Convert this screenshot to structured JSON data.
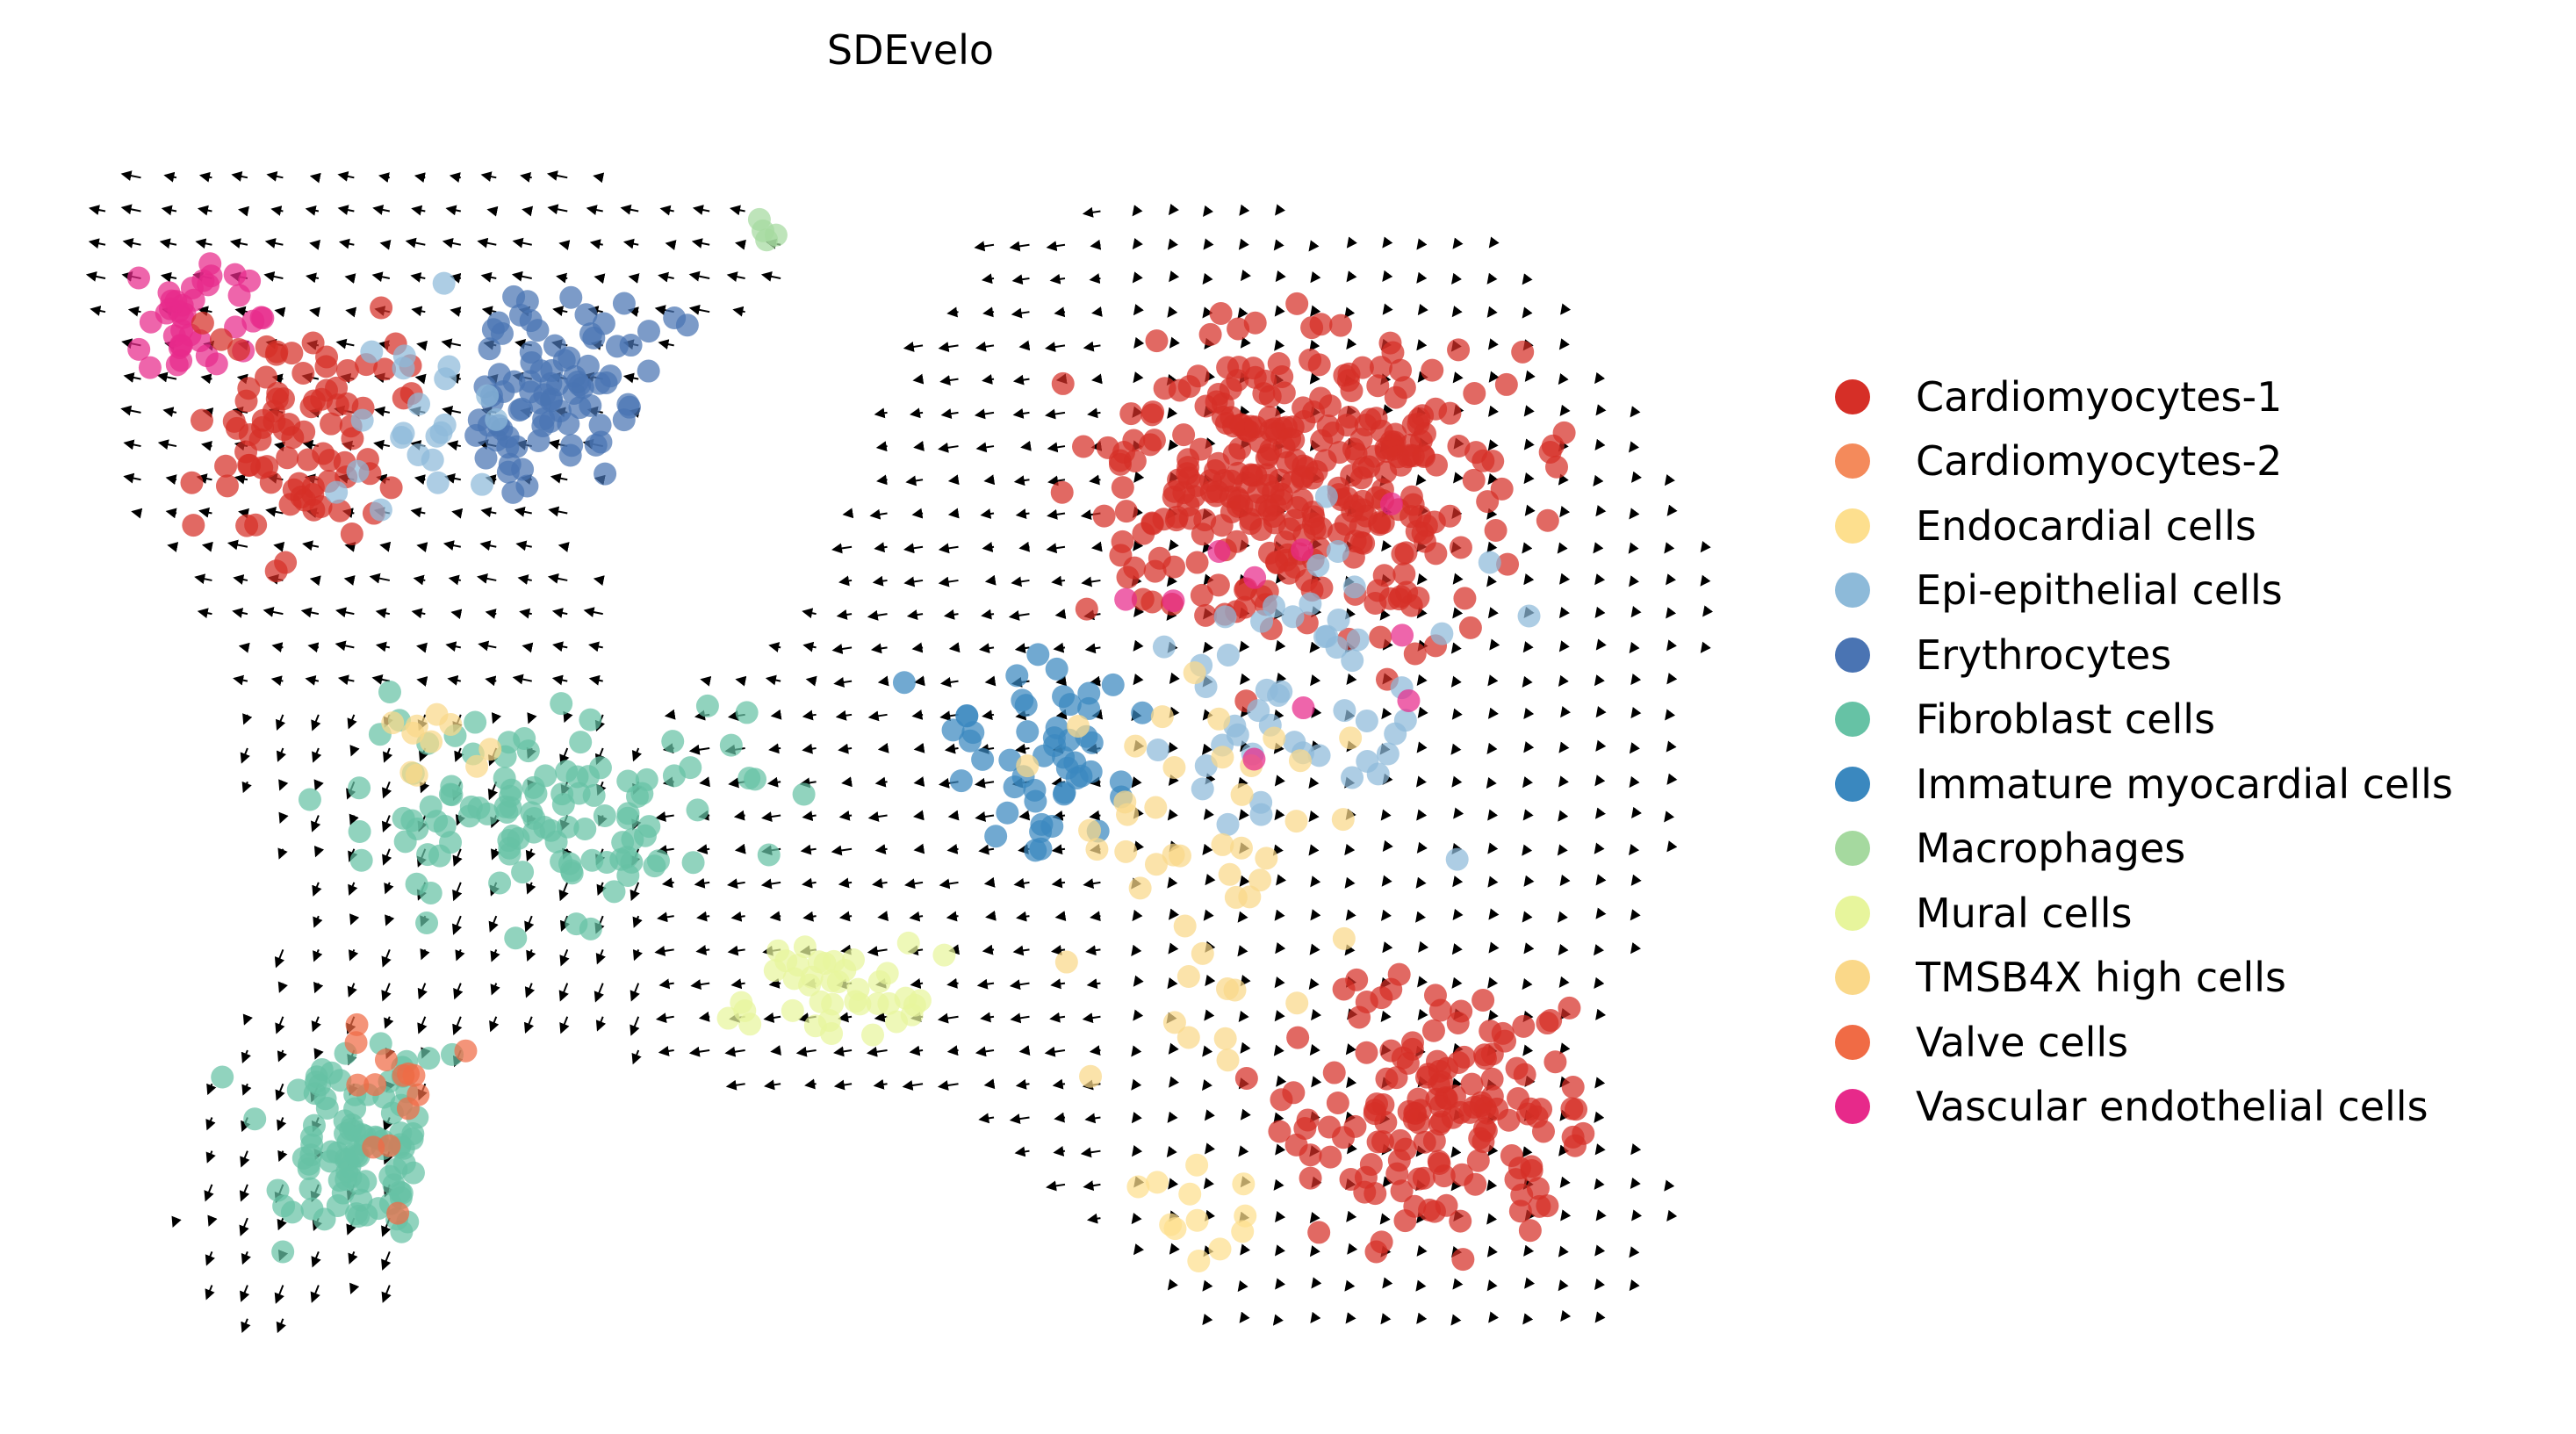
{
  "chart_data": {
    "type": "scatter",
    "title": "SDEvelo",
    "xlabel": "",
    "ylabel": "",
    "axes_visible": false,
    "overlay": "velocity-arrows",
    "legend_position": "right",
    "categories": [
      {
        "name": "Cardiomyocytes-1",
        "color": "#d62f27"
      },
      {
        "name": "Cardiomyocytes-2",
        "color": "#f48a5b"
      },
      {
        "name": "Endocardial cells",
        "color": "#fddf8e"
      },
      {
        "name": "Epi-epithelial cells",
        "color": "#8dbad9"
      },
      {
        "name": "Erythrocytes",
        "color": "#4a74b3"
      },
      {
        "name": "Fibroblast cells",
        "color": "#66c2a5"
      },
      {
        "name": "Immature myocardial cells",
        "color": "#3a88bf"
      },
      {
        "name": "Macrophages",
        "color": "#a5d99f"
      },
      {
        "name": "Mural cells",
        "color": "#e7f59c"
      },
      {
        "name": "TMSB4X high cells",
        "color": "#fad889"
      },
      {
        "name": "Valve cells",
        "color": "#f06b45"
      },
      {
        "name": "Vascular endothelial cells",
        "color": "#e7298a"
      }
    ],
    "regions": [
      {
        "category": "Vascular endothelial cells",
        "center": [
          0.06,
          0.86
        ],
        "spread": [
          0.05,
          0.07
        ],
        "count": 38
      },
      {
        "category": "Cardiomyocytes-1",
        "center": [
          0.12,
          0.76
        ],
        "spread": [
          0.09,
          0.14
        ],
        "count": 85
      },
      {
        "category": "Erythrocytes",
        "center": [
          0.28,
          0.8
        ],
        "spread": [
          0.09,
          0.12
        ],
        "count": 85
      },
      {
        "category": "Epi-epithelial cells",
        "center": [
          0.2,
          0.78
        ],
        "spread": [
          0.1,
          0.12
        ],
        "count": 22
      },
      {
        "category": "Macrophages",
        "center": [
          0.42,
          0.94
        ],
        "spread": [
          0.02,
          0.02
        ],
        "count": 4
      },
      {
        "category": "Fibroblast cells",
        "center": [
          0.28,
          0.45
        ],
        "spread": [
          0.2,
          0.12
        ],
        "count": 110
      },
      {
        "category": "Fibroblast cells",
        "center": [
          0.17,
          0.17
        ],
        "spread": [
          0.1,
          0.12
        ],
        "count": 95
      },
      {
        "category": "Valve cells",
        "center": [
          0.19,
          0.2
        ],
        "spread": [
          0.08,
          0.12
        ],
        "count": 14
      },
      {
        "category": "TMSB4X high cells",
        "center": [
          0.2,
          0.5
        ],
        "spread": [
          0.06,
          0.05
        ],
        "count": 10
      },
      {
        "category": "Mural cells",
        "center": [
          0.46,
          0.3
        ],
        "spread": [
          0.12,
          0.06
        ],
        "count": 40
      },
      {
        "category": "Cardiomyocytes-1",
        "center": [
          0.74,
          0.72
        ],
        "spread": [
          0.19,
          0.19
        ],
        "count": 330
      },
      {
        "category": "Cardiomyocytes-1",
        "center": [
          0.82,
          0.2
        ],
        "spread": [
          0.13,
          0.15
        ],
        "count": 150
      },
      {
        "category": "Immature myocardial cells",
        "center": [
          0.58,
          0.5
        ],
        "spread": [
          0.09,
          0.12
        ],
        "count": 50
      },
      {
        "category": "Epi-epithelial cells",
        "center": [
          0.74,
          0.55
        ],
        "spread": [
          0.16,
          0.18
        ],
        "count": 50
      },
      {
        "category": "TMSB4X high cells",
        "center": [
          0.68,
          0.4
        ],
        "spread": [
          0.16,
          0.22
        ],
        "count": 45
      },
      {
        "category": "Endocardial cells",
        "center": [
          0.68,
          0.12
        ],
        "spread": [
          0.05,
          0.06
        ],
        "count": 12
      },
      {
        "category": "Vascular endothelial cells",
        "center": [
          0.72,
          0.6
        ],
        "spread": [
          0.18,
          0.2
        ],
        "count": 10
      }
    ]
  }
}
